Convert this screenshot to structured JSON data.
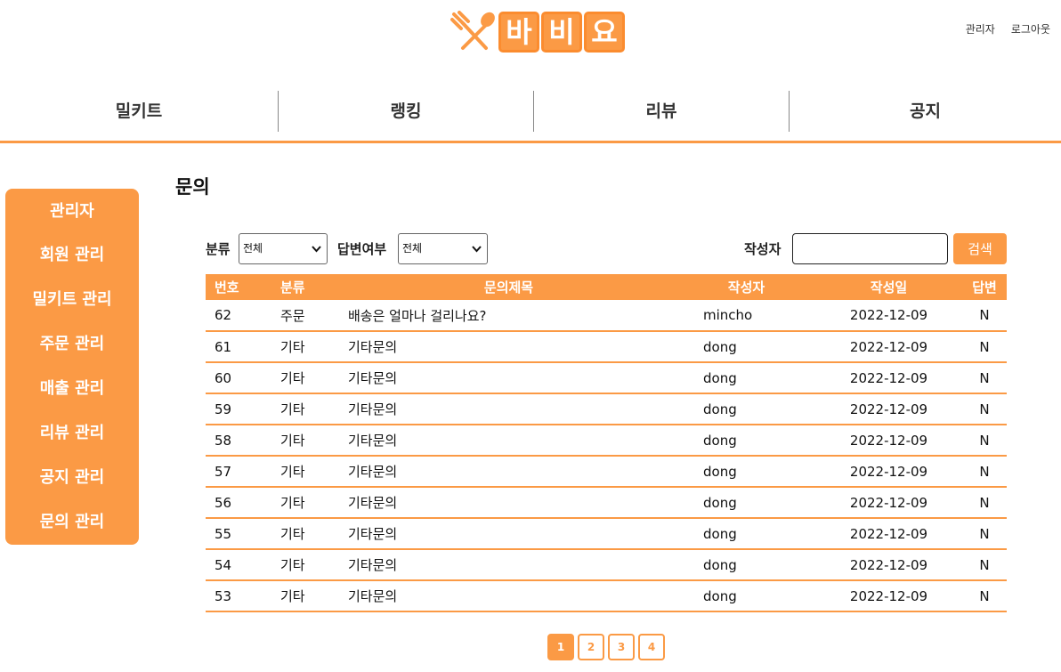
{
  "logo": {
    "text_chars": [
      "바",
      "비",
      "요"
    ]
  },
  "top_links": {
    "admin": "관리자",
    "logout": "로그아웃"
  },
  "gnb": [
    {
      "label": "밀키트"
    },
    {
      "label": "랭킹"
    },
    {
      "label": "리뷰"
    },
    {
      "label": "공지"
    }
  ],
  "sidebar": {
    "items": [
      {
        "label": "관리자"
      },
      {
        "label": "회원 관리"
      },
      {
        "label": "밀키트 관리"
      },
      {
        "label": "주문 관리"
      },
      {
        "label": "매출 관리"
      },
      {
        "label": "리뷰 관리"
      },
      {
        "label": "공지 관리"
      },
      {
        "label": "문의 관리"
      }
    ]
  },
  "page_title": "문의",
  "filters": {
    "category_label": "분류",
    "category_value": "전체",
    "answer_label": "답변여부",
    "answer_value": "전체",
    "writer_label": "작성자",
    "writer_value": "",
    "search_button": "검색"
  },
  "table": {
    "headers": [
      "번호",
      "분류",
      "문의제목",
      "작성자",
      "작성일",
      "답변"
    ],
    "rows": [
      [
        "62",
        "주문",
        "배송은 얼마나 걸리나요?",
        "mincho",
        "2022-12-09",
        "N"
      ],
      [
        "61",
        "기타",
        "기타문의",
        "dong",
        "2022-12-09",
        "N"
      ],
      [
        "60",
        "기타",
        "기타문의",
        "dong",
        "2022-12-09",
        "N"
      ],
      [
        "59",
        "기타",
        "기타문의",
        "dong",
        "2022-12-09",
        "N"
      ],
      [
        "58",
        "기타",
        "기타문의",
        "dong",
        "2022-12-09",
        "N"
      ],
      [
        "57",
        "기타",
        "기타문의",
        "dong",
        "2022-12-09",
        "N"
      ],
      [
        "56",
        "기타",
        "기타문의",
        "dong",
        "2022-12-09",
        "N"
      ],
      [
        "55",
        "기타",
        "기타문의",
        "dong",
        "2022-12-09",
        "N"
      ],
      [
        "54",
        "기타",
        "기타문의",
        "dong",
        "2022-12-09",
        "N"
      ],
      [
        "53",
        "기타",
        "기타문의",
        "dong",
        "2022-12-09",
        "N"
      ]
    ]
  },
  "pagination": {
    "pages": [
      "1",
      "2",
      "3",
      "4"
    ],
    "current": "1"
  },
  "colors": {
    "accent": "#fb9a45",
    "accent_dark": "#fb8c2f"
  }
}
